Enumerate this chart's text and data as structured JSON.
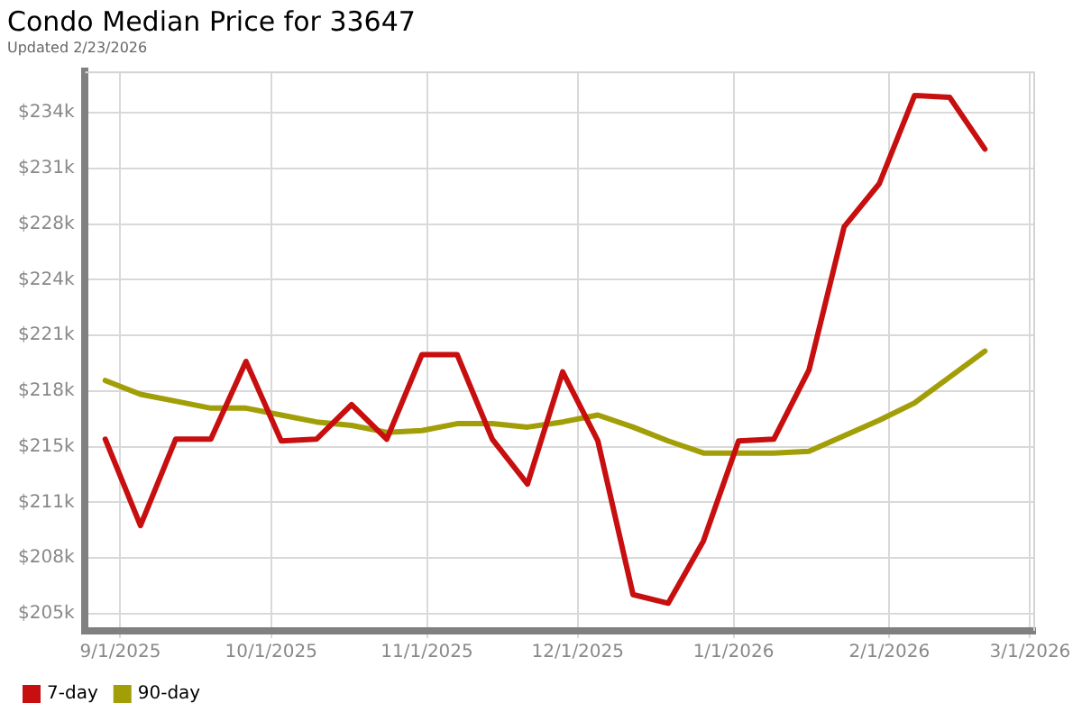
{
  "chart_data": {
    "type": "line",
    "title": "Condo Median Price for 33647",
    "subtitle": "Updated 2/23/2026",
    "x": [
      "2025-08-29",
      "2025-09-05",
      "2025-09-12",
      "2025-09-19",
      "2025-09-26",
      "2025-10-03",
      "2025-10-10",
      "2025-10-17",
      "2025-10-24",
      "2025-10-31",
      "2025-11-07",
      "2025-11-14",
      "2025-11-21",
      "2025-11-28",
      "2025-12-05",
      "2025-12-12",
      "2025-12-19",
      "2025-12-26",
      "2026-01-02",
      "2026-01-09",
      "2026-01-16",
      "2026-01-23",
      "2026-01-30",
      "2026-02-06",
      "2026-02-13",
      "2026-02-20"
    ],
    "series": [
      {
        "name": "7-day",
        "color": "#c70f0f",
        "values": [
          215100,
          210100,
          215100,
          215100,
          219600,
          215000,
          215100,
          217100,
          215100,
          220000,
          220000,
          215100,
          212500,
          219000,
          215000,
          206100,
          205600,
          209200,
          215000,
          215100,
          219100,
          227400,
          229900,
          235000,
          234900,
          231900
        ]
      },
      {
        "name": "90-day",
        "color": "#a29e08",
        "values": [
          218500,
          217700,
          217300,
          216900,
          216900,
          216500,
          216100,
          215900,
          215500,
          215600,
          216000,
          216000,
          215800,
          216100,
          216500,
          215800,
          215000,
          214300,
          214300,
          214300,
          214400,
          215300,
          216200,
          217200,
          218700,
          220200
        ]
      }
    ],
    "xlim": [
      "2025-08-25",
      "2026-03-02"
    ],
    "xticks": [
      {
        "value": "2025-09-01",
        "label": "9/1/2025"
      },
      {
        "value": "2025-10-01",
        "label": "10/1/2025"
      },
      {
        "value": "2025-11-01",
        "label": "11/1/2025"
      },
      {
        "value": "2025-12-01",
        "label": "12/1/2025"
      },
      {
        "value": "2026-01-01",
        "label": "1/1/2026"
      },
      {
        "value": "2026-02-01",
        "label": "2/1/2026"
      },
      {
        "value": "2026-03-01",
        "label": "3/1/2026"
      }
    ],
    "ylim": [
      204000,
      236400
    ],
    "yticks": [
      {
        "value": 205000,
        "label": "$205k"
      },
      {
        "value": 208222,
        "label": "$208k"
      },
      {
        "value": 211444,
        "label": "$211k"
      },
      {
        "value": 214667,
        "label": "$215k"
      },
      {
        "value": 217889,
        "label": "$218k"
      },
      {
        "value": 221111,
        "label": "$221k"
      },
      {
        "value": 224333,
        "label": "$224k"
      },
      {
        "value": 227556,
        "label": "$228k"
      },
      {
        "value": 230778,
        "label": "$231k"
      },
      {
        "value": 234000,
        "label": "$234k"
      }
    ],
    "grid": true,
    "legend": "bottom left",
    "marker": "none",
    "line_style": "solid"
  }
}
